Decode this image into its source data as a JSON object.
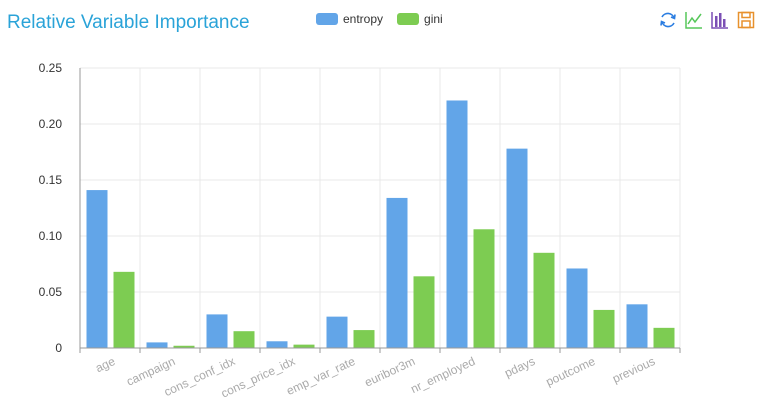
{
  "title": "Relative Variable Importance",
  "toolbox": [
    {
      "name": "refresh-icon",
      "color": "#2a7de1"
    },
    {
      "name": "line-chart-icon",
      "color": "#56c75a"
    },
    {
      "name": "bar-chart-icon",
      "color": "#7b4fb5"
    },
    {
      "name": "save-icon",
      "color": "#e8912d"
    }
  ],
  "chart_data": {
    "type": "bar",
    "title": "Relative Variable Importance",
    "xlabel": "",
    "ylabel": "",
    "categories": [
      "age",
      "campaign",
      "cons_conf_idx",
      "cons_price_idx",
      "emp_var_rate",
      "euribor3m",
      "nr_employed",
      "pdays",
      "poutcome",
      "previous"
    ],
    "series": [
      {
        "name": "entropy",
        "color": "#62a5e8",
        "values": [
          0.141,
          0.005,
          0.03,
          0.006,
          0.028,
          0.134,
          0.221,
          0.178,
          0.071,
          0.039
        ]
      },
      {
        "name": "gini",
        "color": "#7dcc52",
        "values": [
          0.068,
          0.002,
          0.015,
          0.003,
          0.016,
          0.064,
          0.106,
          0.085,
          0.034,
          0.018
        ]
      }
    ],
    "ylim": [
      0,
      0.25
    ],
    "yticks": [
      "0",
      "0.05",
      "0.10",
      "0.15",
      "0.20",
      "0.25"
    ],
    "grid": true,
    "legend_position": "top-center"
  }
}
